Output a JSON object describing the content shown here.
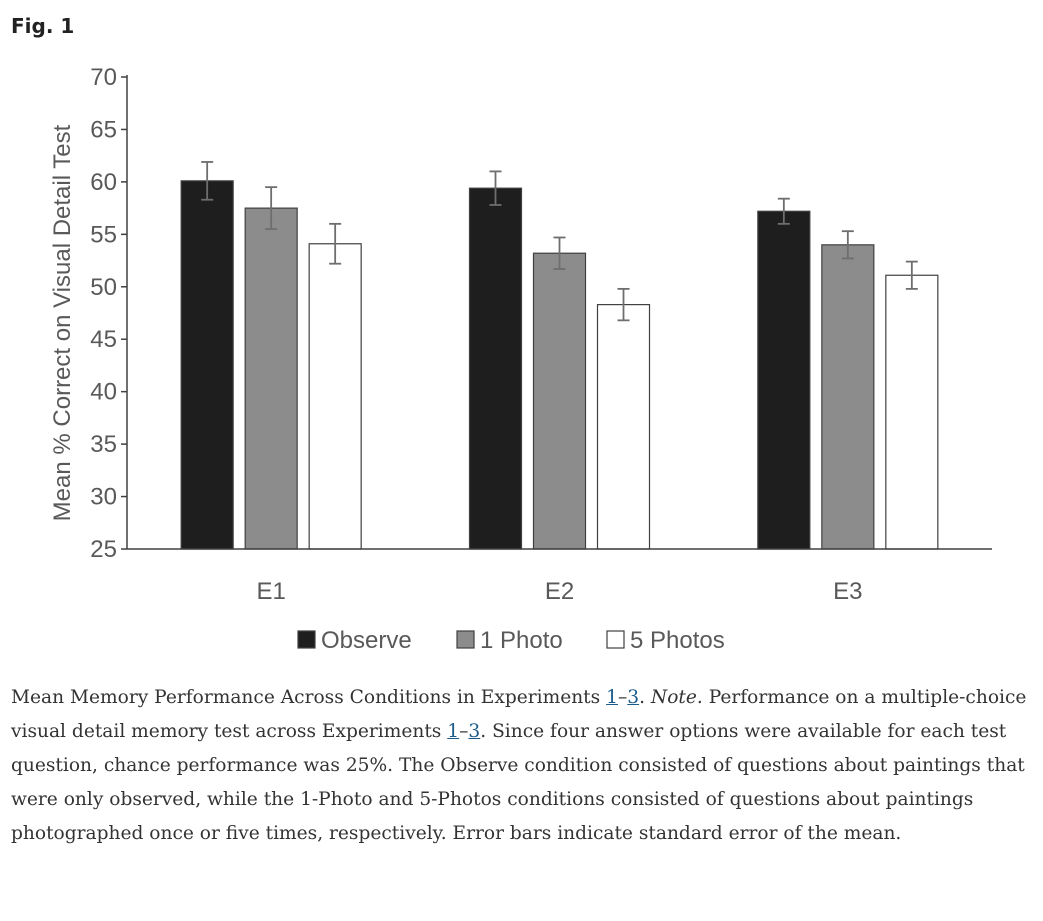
{
  "figure": {
    "label": "Fig. 1"
  },
  "chart_data": {
    "type": "bar",
    "categories": [
      "E1",
      "E2",
      "E3"
    ],
    "ylabel": "Mean % Correct on Visual Detail Test",
    "xlabel": "",
    "ylim": [
      25,
      70
    ],
    "yticks": [
      25,
      30,
      35,
      40,
      45,
      50,
      55,
      60,
      65,
      70
    ],
    "grid": false,
    "legend_position": "bottom",
    "series": [
      {
        "name": "Observe",
        "color": "#1e1e1e",
        "values": [
          60.1,
          59.4,
          57.2
        ],
        "errors": [
          1.8,
          1.6,
          1.2
        ]
      },
      {
        "name": "1 Photo",
        "color": "#8c8c8c",
        "values": [
          57.5,
          53.2,
          54.0
        ],
        "errors": [
          2.0,
          1.5,
          1.3
        ]
      },
      {
        "name": "5 Photos",
        "color": "#ffffff",
        "values": [
          54.1,
          48.3,
          51.1
        ],
        "errors": [
          1.9,
          1.5,
          1.3
        ]
      }
    ]
  },
  "caption": {
    "title": "Mean Memory Performance Across Conditions in Experiments ",
    "ref1": "1",
    "dash": "–",
    "ref3": "3",
    "after_title": ". ",
    "note": "Note.",
    "text1": " Performance on a multiple-choice visual detail memory test across Experiments ",
    "ref1b": "1",
    "dash2": "–",
    "ref3b": "3",
    "text2": ". Since four answer options were available for each test question, chance performance was 25%. The Observe condition consisted of questions about paintings that were only observed, while the 1-Photo and 5-Photos conditions consisted of questions about paintings photographed once or five times, respectively. Error bars indicate standard error of the mean."
  }
}
